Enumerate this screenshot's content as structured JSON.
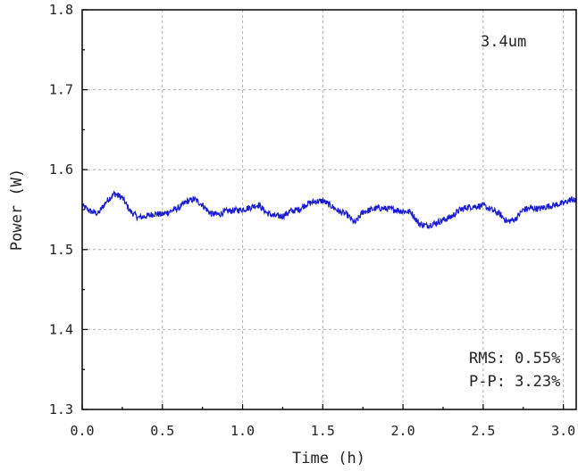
{
  "chart_data": {
    "type": "line",
    "title": "",
    "xlabel": "Time (h)",
    "ylabel": "Power (W)",
    "xlim": [
      0.0,
      3.08
    ],
    "ylim": [
      1.3,
      1.8
    ],
    "x_ticks": [
      "0.0",
      "0.5",
      "1.0",
      "1.5",
      "2.0",
      "2.5",
      "3.0"
    ],
    "y_ticks": [
      "1.3",
      "1.4",
      "1.5",
      "1.6",
      "1.7",
      "1.8"
    ],
    "grid": true,
    "line_color": "#1a1ad0",
    "annotations": {
      "wavelength": "3.4um",
      "rms": "RMS: 0.55%",
      "pp": "P-P: 3.23%"
    },
    "series": [
      {
        "x": [
          0.0,
          0.05,
          0.1,
          0.15,
          0.2,
          0.25,
          0.3,
          0.35,
          0.4,
          0.45,
          0.5,
          0.55,
          0.6,
          0.65,
          0.7,
          0.75,
          0.8,
          0.85,
          0.9,
          0.95,
          1.0,
          1.05,
          1.1,
          1.15,
          1.2,
          1.25,
          1.3,
          1.35,
          1.4,
          1.45,
          1.5,
          1.55,
          1.6,
          1.65,
          1.7,
          1.75,
          1.8,
          1.85,
          1.9,
          1.95,
          2.0,
          2.05,
          2.1,
          2.15,
          2.2,
          2.25,
          2.3,
          2.35,
          2.4,
          2.45,
          2.5,
          2.55,
          2.6,
          2.65,
          2.7,
          2.75,
          2.8,
          2.85,
          2.9,
          2.95,
          3.0,
          3.05,
          3.08
        ],
        "y": [
          1.555,
          1.548,
          1.545,
          1.56,
          1.57,
          1.565,
          1.548,
          1.54,
          1.542,
          1.545,
          1.544,
          1.548,
          1.552,
          1.56,
          1.563,
          1.556,
          1.545,
          1.544,
          1.548,
          1.549,
          1.55,
          1.553,
          1.556,
          1.546,
          1.542,
          1.542,
          1.548,
          1.55,
          1.557,
          1.56,
          1.561,
          1.555,
          1.548,
          1.544,
          1.533,
          1.547,
          1.55,
          1.552,
          1.551,
          1.55,
          1.548,
          1.547,
          1.532,
          1.53,
          1.533,
          1.537,
          1.541,
          1.549,
          1.553,
          1.554,
          1.555,
          1.55,
          1.545,
          1.535,
          1.538,
          1.55,
          1.552,
          1.551,
          1.554,
          1.556,
          1.558,
          1.563,
          1.56
        ]
      }
    ]
  }
}
